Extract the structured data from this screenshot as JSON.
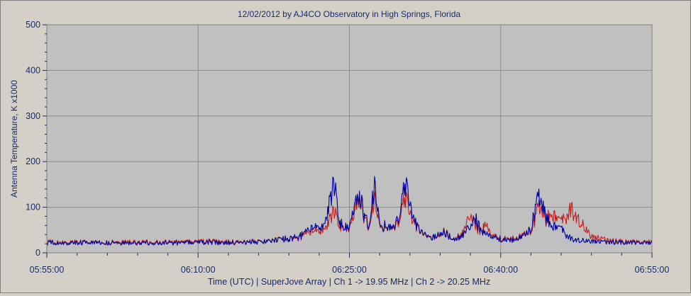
{
  "chart_data": {
    "type": "line",
    "title": "12/02/2012  by  AJ4CO Observatory  in  High Springs, Florida",
    "xlabel": "Time (UTC)   |   SuperJove Array   |   Ch 1 -> 19.95 MHz   |   Ch 2 -> 20.25 MHz",
    "ylabel": "Antenna Temperature, K  x1000",
    "ylim": [
      0,
      500
    ],
    "xlim": [
      "05:55:00",
      "06:55:00"
    ],
    "y_ticks": [
      "0",
      "100",
      "200",
      "300",
      "400",
      "500"
    ],
    "x_ticks": [
      "05:55:00",
      "06:10:00",
      "06:25:00",
      "06:40:00",
      "06:55:00"
    ],
    "grid": true,
    "x_unit": "minutes after 05:55:00 UTC",
    "series": [
      {
        "name": "Ch 1 -> 19.95 MHz",
        "color": "#0000a0",
        "x": [
          0,
          2,
          4,
          6,
          8,
          10,
          12,
          14,
          16,
          18,
          20,
          22,
          23,
          24,
          25,
          26,
          27.5,
          28.5,
          29,
          29.5,
          30,
          30.5,
          31,
          31.5,
          32,
          32.5,
          33,
          33.5,
          34,
          34.5,
          35,
          35.5,
          36,
          36.5,
          37,
          37.5,
          38,
          38.5,
          39,
          39.5,
          40,
          40.5,
          41,
          41.5,
          42,
          42.5,
          43,
          43.5,
          44,
          44.5,
          45,
          45.5,
          46,
          46.5,
          47,
          47.5,
          48,
          48.5,
          49,
          49.5,
          50,
          51,
          52,
          54,
          56,
          58,
          60
        ],
        "values": [
          22,
          21,
          23,
          22,
          21,
          22,
          21,
          22,
          23,
          22,
          23,
          25,
          28,
          32,
          35,
          48,
          60,
          150,
          70,
          55,
          65,
          95,
          130,
          75,
          62,
          150,
          55,
          60,
          55,
          55,
          80,
          150,
          110,
          70,
          45,
          38,
          33,
          35,
          40,
          45,
          35,
          30,
          35,
          45,
          55,
          75,
          50,
          40,
          35,
          32,
          30,
          28,
          28,
          30,
          35,
          40,
          55,
          100,
          130,
          75,
          60,
          50,
          30,
          25,
          23,
          22,
          22
        ]
      },
      {
        "name": "Ch 2 -> 20.25 MHz",
        "color": "#c02020",
        "x": [
          0,
          2,
          4,
          6,
          8,
          10,
          12,
          14,
          16,
          18,
          20,
          22,
          23,
          24,
          25,
          26,
          27.5,
          28.5,
          29,
          29.5,
          30,
          30.5,
          31,
          31.5,
          32,
          32.5,
          33,
          33.5,
          34,
          34.5,
          35,
          35.5,
          36,
          36.5,
          37,
          37.5,
          38,
          38.5,
          39,
          39.5,
          40,
          40.5,
          41,
          41.5,
          42,
          42.5,
          43,
          43.5,
          44,
          44.5,
          45,
          45.5,
          46,
          46.5,
          47,
          47.5,
          48,
          48.5,
          49,
          49.5,
          50,
          51,
          52,
          54,
          56,
          58,
          60
        ],
        "values": [
          24,
          23,
          24,
          23,
          24,
          24,
          23,
          24,
          25,
          24,
          24,
          26,
          29,
          31,
          33,
          42,
          50,
          90,
          60,
          55,
          60,
          80,
          125,
          70,
          58,
          120,
          52,
          58,
          55,
          52,
          70,
          120,
          90,
          65,
          45,
          36,
          32,
          34,
          38,
          48,
          36,
          32,
          38,
          55,
          80,
          60,
          45,
          60,
          40,
          35,
          32,
          30,
          30,
          33,
          38,
          42,
          50,
          80,
          110,
          70,
          85,
          65,
          95,
          35,
          26,
          24,
          24
        ]
      }
    ]
  }
}
